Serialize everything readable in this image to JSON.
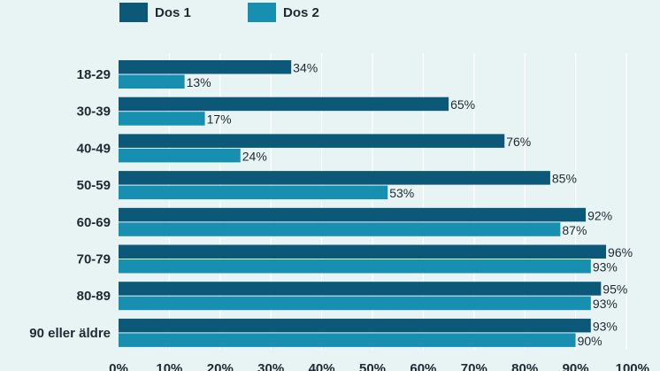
{
  "chart_data": {
    "type": "bar",
    "orientation": "horizontal",
    "categories": [
      "18-29",
      "30-39",
      "40-49",
      "50-59",
      "60-69",
      "70-79",
      "80-89",
      "90 eller äldre"
    ],
    "series": [
      {
        "name": "Dos 1",
        "color": "#0c5878",
        "values": [
          34,
          65,
          76,
          85,
          92,
          96,
          95,
          93
        ]
      },
      {
        "name": "Dos 2",
        "color": "#178fb0",
        "values": [
          13,
          17,
          24,
          53,
          87,
          93,
          93,
          90
        ]
      }
    ],
    "value_suffix": "%",
    "xlim": [
      0,
      100
    ],
    "xticks": [
      0,
      10,
      20,
      30,
      40,
      50,
      60,
      70,
      80,
      90,
      100
    ],
    "xtick_labels": [
      "0%",
      "10%",
      "20%",
      "30%",
      "40%",
      "50%",
      "60%",
      "70%",
      "80%",
      "90%",
      "100%"
    ],
    "grid": "vertical",
    "legend": "top-left",
    "title": "",
    "xlabel": "",
    "ylabel": ""
  }
}
